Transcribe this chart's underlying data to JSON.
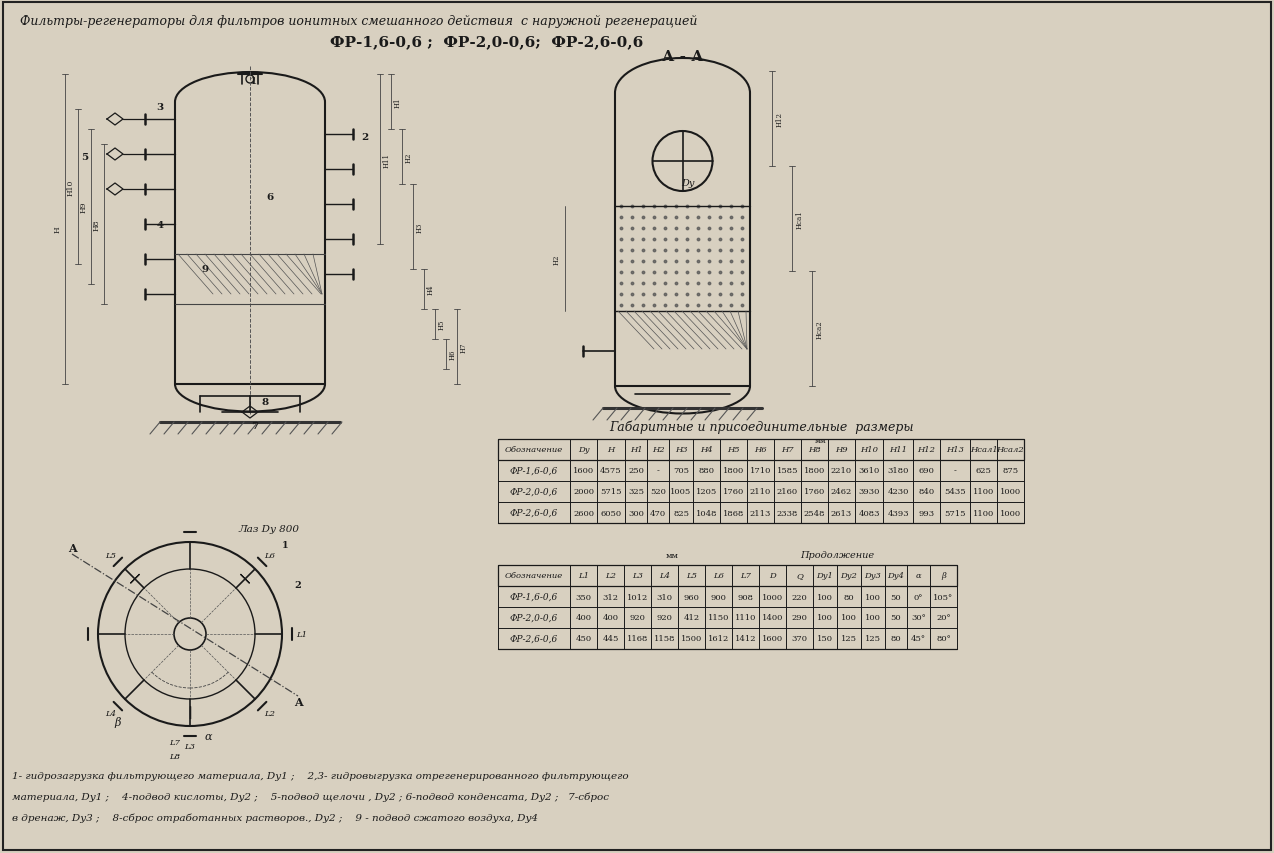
{
  "bg_color": "#d8d0c0",
  "title_italic": "Фильтры-регенераторы для фильтров ионитных смешанного действия  с наружной регенерацией",
  "subtitle": "ФР-1,6-0,6 ;  ФР-2,0-0,6;  ФР-2,6-0,6",
  "table1_title": "Габаритные и присоединительные  размеры",
  "table1_headers": [
    "Обозначение",
    "Dy",
    "H",
    "H1",
    "H2",
    "H3",
    "H4",
    "H5",
    "H6",
    "H7",
    "H8",
    "H9",
    "H10",
    "H11",
    "H12",
    "H13",
    "Нсал1",
    "Нсал2"
  ],
  "table1_rows": [
    [
      "ФР-1,6-0,6",
      "1600",
      "4575",
      "250",
      "-",
      "705",
      "880",
      "1800",
      "1710",
      "1585",
      "1800",
      "2210",
      "3610",
      "3180",
      "690",
      "-",
      "625",
      "875"
    ],
    [
      "ФР-2,0-0,6",
      "2000",
      "5715",
      "325",
      "520",
      "1005",
      "1205",
      "1760",
      "2110",
      "2160",
      "1760",
      "2462",
      "3930",
      "4230",
      "840",
      "5435",
      "1100",
      "1000"
    ],
    [
      "ФР-2,6-0,6",
      "2600",
      "6050",
      "300",
      "470",
      "825",
      "1048",
      "1868",
      "2113",
      "2338",
      "2548",
      "2613",
      "4083",
      "4393",
      "993",
      "5715",
      "1100",
      "1000"
    ]
  ],
  "table2_mm_label": "мм",
  "table2_cont_label": "Продолжение",
  "table2_headers": [
    "Обозначение",
    "L1",
    "L2",
    "L3",
    "L4",
    "L5",
    "L6",
    "L7",
    "D",
    "Q",
    "Dy1",
    "Dy2",
    "Dy3",
    "Dy4",
    "α",
    "β"
  ],
  "table2_rows": [
    [
      "ФР-1,6-0,6",
      "350",
      "312",
      "1012",
      "310",
      "960",
      "900",
      "908",
      "1000",
      "220",
      "100",
      "80",
      "100",
      "50",
      "0°",
      "105°"
    ],
    [
      "ФР-2,0-0,6",
      "400",
      "400",
      "920",
      "920",
      "412",
      "1150",
      "1110",
      "1400",
      "290",
      "100",
      "100",
      "100",
      "50",
      "30°",
      "20°"
    ],
    [
      "ФР-2,6-0,6",
      "450",
      "445",
      "1168",
      "1158",
      "1500",
      "1612",
      "1412",
      "1600",
      "370",
      "150",
      "125",
      "125",
      "80",
      "45°",
      "80°"
    ]
  ],
  "footnote_lines": [
    "1- гидрозагрузка фильтрующего материала, Dy1 ;    2,3- гидровыгрузка отрегенерированного фильтрующего",
    "материала, Dy1 ;    4-подвод кислоты, Dy2 ;    5-подвод щелочи , Dy2 ; 6-подвод конденсата, Dy2 ;   7-сброс",
    "в дренаж, Dy3 ;    8-сброс отработанных растворов., Dy2 ;    9 - подвод сжатого воздуха, Dy4"
  ],
  "aa_label": "А - А",
  "laz_label": "Лаз Dy 800"
}
